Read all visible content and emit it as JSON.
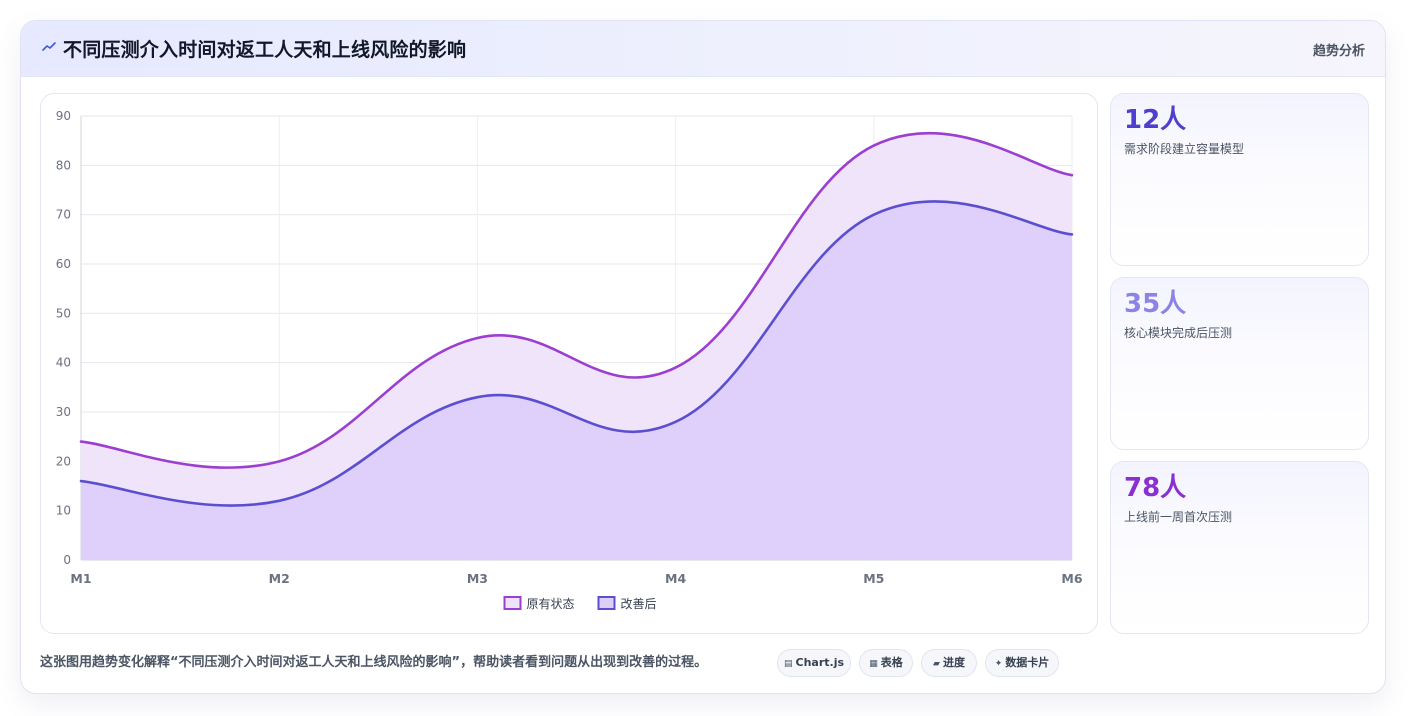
{
  "header": {
    "title": "不同压测介入时间对返工人天和上线风险的影响",
    "icon": "trend-line-icon",
    "tag": "趋势分析"
  },
  "colors": {
    "series_original": "#9b3fd1",
    "series_original_fill": "#eee1fb",
    "series_improved": "#5b4fd0",
    "series_improved_fill": "#dccffa",
    "stat_1": "#4f3fcc",
    "stat_2": "#8b83e6",
    "stat_3": "#8a2fd0"
  },
  "chart_data": {
    "type": "area",
    "title": "",
    "xlabel": "",
    "ylabel": "",
    "categories": [
      "M1",
      "M2",
      "M3",
      "M4",
      "M5",
      "M6"
    ],
    "series": [
      {
        "name": "原有状态",
        "values": [
          24,
          20,
          45,
          39,
          84,
          78
        ]
      },
      {
        "name": "改善后",
        "values": [
          16,
          12,
          33,
          28,
          70,
          66
        ]
      }
    ],
    "ylim": [
      0,
      90
    ],
    "yticks": [
      0,
      10,
      20,
      30,
      40,
      50,
      60,
      70,
      80,
      90
    ],
    "grid": true,
    "legend": "bottom-center"
  },
  "stats": [
    {
      "value": "12人",
      "label": "需求阶段建立容量模型"
    },
    {
      "value": "35人",
      "label": "核心模块完成后压测"
    },
    {
      "value": "78人",
      "label": "上线前一周首次压测"
    }
  ],
  "footer": {
    "text": "这张图用趋势变化解释“不同压测介入时间对返工人天和上线风险的影响”，帮助读者看到问题从出现到改善的过程。",
    "chips": [
      {
        "icon": "chart-icon",
        "glyph": "▤",
        "label": "Chart.js"
      },
      {
        "icon": "table-icon",
        "glyph": "▦",
        "label": "表格"
      },
      {
        "icon": "progress-icon",
        "glyph": "▰",
        "label": "进度"
      },
      {
        "icon": "card-icon",
        "glyph": "✦",
        "label": "数据卡片"
      }
    ]
  }
}
